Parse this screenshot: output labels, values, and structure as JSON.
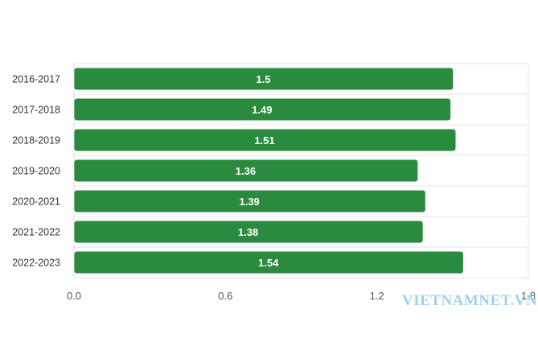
{
  "chart_data": {
    "type": "bar",
    "orientation": "horizontal",
    "categories": [
      "2016-2017",
      "2017-2018",
      "2018-2019",
      "2019-2020",
      "2020-2021",
      "2021-2022",
      "2022-2023"
    ],
    "values": [
      1.5,
      1.49,
      1.51,
      1.36,
      1.39,
      1.38,
      1.54
    ],
    "value_labels": [
      "1.5",
      "1.49",
      "1.51",
      "1.36",
      "1.39",
      "1.38",
      "1.54"
    ],
    "xticks": [
      "0.0",
      "0.6",
      "1.2",
      "1.8"
    ],
    "xlim": [
      0,
      1.8
    ],
    "grid": true,
    "bar_color": "#2a8a3e",
    "title": "",
    "xlabel": "",
    "ylabel": ""
  },
  "watermark": "VIETNAMNET.VN"
}
